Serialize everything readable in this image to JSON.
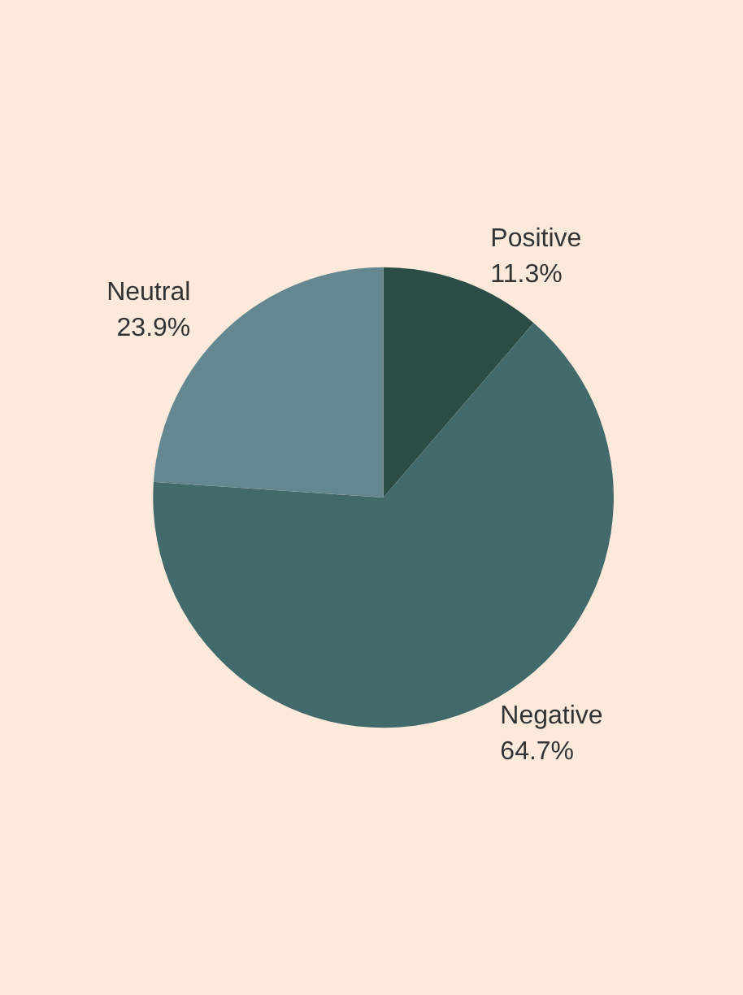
{
  "chart_data": {
    "type": "pie",
    "categories": [
      "Positive",
      "Negative",
      "Neutral"
    ],
    "values": [
      11.3,
      64.7,
      23.9
    ],
    "colors": [
      "#2c4d45",
      "#436a6a",
      "#648790"
    ],
    "value_labels": [
      "11.3%",
      "64.7%",
      "23.9%"
    ],
    "legend": false
  }
}
